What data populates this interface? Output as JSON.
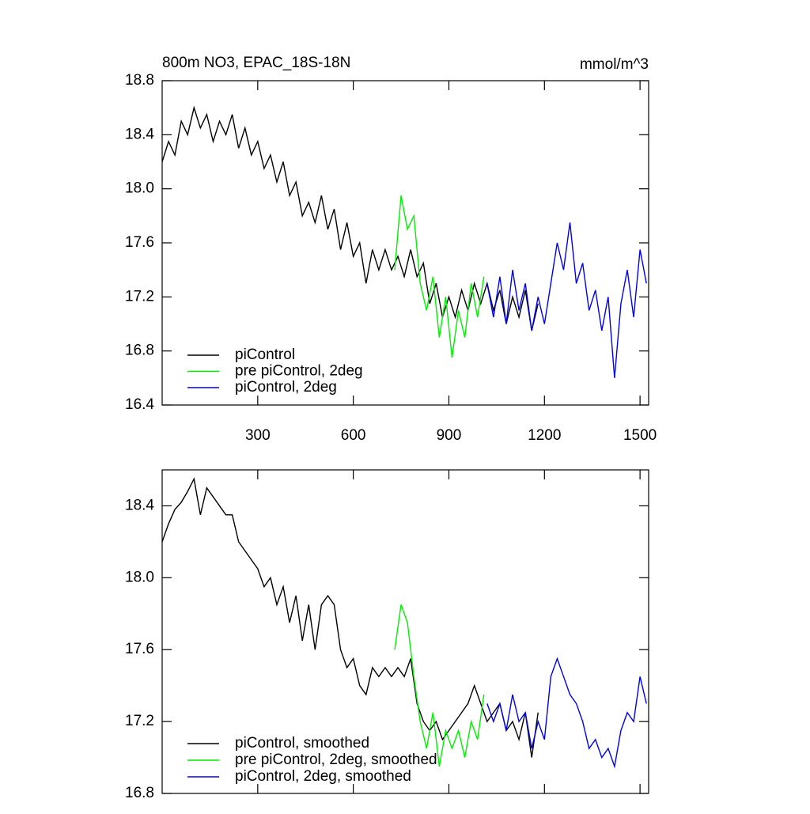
{
  "chart_data": [
    {
      "type": "line",
      "title": "800m NO3, EPAC_18S-18N",
      "units": "mmol/m^3",
      "xlim": [
        0,
        1527
      ],
      "xticks": [
        300,
        600,
        900,
        1200,
        1500
      ],
      "ylim": [
        16.4,
        18.8
      ],
      "yticks": [
        {
          "value": 16.4,
          "label": "16.4"
        },
        {
          "value": 16.8,
          "label": "16.8"
        },
        {
          "value": 17.2,
          "label": "17.2"
        },
        {
          "value": 17.6,
          "label": "17.6"
        },
        {
          "value": 18.0,
          "label": "18.0"
        },
        {
          "value": 18.4,
          "label": "18.4"
        },
        {
          "value": 18.8,
          "label": "18.8"
        }
      ],
      "series": [
        {
          "name": "piControl",
          "color": "#000000",
          "x": [
            0,
            20,
            40,
            60,
            80,
            100,
            120,
            140,
            160,
            180,
            200,
            220,
            240,
            260,
            280,
            300,
            320,
            340,
            360,
            380,
            400,
            420,
            440,
            460,
            480,
            500,
            520,
            540,
            560,
            580,
            600,
            620,
            640,
            660,
            680,
            700,
            720,
            740,
            760,
            780,
            800,
            820,
            840,
            860,
            880,
            900,
            920,
            940,
            960,
            980,
            1000,
            1020,
            1040,
            1060,
            1080,
            1100,
            1120,
            1140,
            1160,
            1180
          ],
          "values": [
            18.2,
            18.35,
            18.25,
            18.5,
            18.4,
            18.6,
            18.45,
            18.55,
            18.35,
            18.5,
            18.4,
            18.55,
            18.3,
            18.45,
            18.25,
            18.35,
            18.15,
            18.25,
            18.05,
            18.2,
            17.95,
            18.05,
            17.8,
            17.9,
            17.75,
            17.95,
            17.7,
            17.85,
            17.55,
            17.75,
            17.5,
            17.6,
            17.3,
            17.55,
            17.4,
            17.55,
            17.4,
            17.5,
            17.35,
            17.55,
            17.35,
            17.45,
            17.15,
            17.3,
            17.05,
            17.2,
            17.05,
            17.25,
            17.1,
            17.3,
            17.15,
            17.3,
            17.1,
            17.25,
            17.0,
            17.2,
            17.05,
            17.25,
            16.95,
            17.15
          ]
        },
        {
          "name": "pre piControl, 2deg",
          "color": "#00ee00",
          "x": [
            730,
            750,
            770,
            790,
            810,
            830,
            850,
            870,
            890,
            910,
            930,
            950,
            970,
            990,
            1010
          ],
          "values": [
            17.4,
            17.95,
            17.7,
            17.8,
            17.3,
            17.1,
            17.35,
            16.9,
            17.2,
            16.75,
            17.1,
            16.9,
            17.3,
            17.05,
            17.35
          ]
        },
        {
          "name": "piControl, 2deg",
          "color": "#0000ee",
          "x": [
            1020,
            1040,
            1060,
            1080,
            1100,
            1120,
            1140,
            1160,
            1180,
            1200,
            1220,
            1240,
            1260,
            1280,
            1300,
            1320,
            1340,
            1360,
            1380,
            1400,
            1420,
            1440,
            1460,
            1480,
            1500,
            1520
          ],
          "values": [
            17.3,
            17.05,
            17.35,
            17.0,
            17.4,
            17.1,
            17.3,
            16.95,
            17.2,
            17.0,
            17.3,
            17.6,
            17.4,
            17.75,
            17.3,
            17.45,
            17.1,
            17.25,
            16.95,
            17.2,
            16.6,
            17.15,
            17.4,
            17.05,
            17.55,
            17.3
          ]
        }
      ]
    },
    {
      "type": "line",
      "xlim": [
        0,
        1527
      ],
      "ylim": [
        16.8,
        18.6
      ],
      "yticks": [
        {
          "value": 16.8,
          "label": "16.8"
        },
        {
          "value": 17.2,
          "label": "17.2"
        },
        {
          "value": 17.6,
          "label": "17.6"
        },
        {
          "value": 18.0,
          "label": "18.0"
        },
        {
          "value": 18.4,
          "label": "18.4"
        }
      ],
      "series": [
        {
          "name": "piControl, smoothed",
          "color": "#000000",
          "x": [
            0,
            20,
            40,
            60,
            80,
            100,
            120,
            140,
            160,
            180,
            200,
            220,
            240,
            260,
            280,
            300,
            320,
            340,
            360,
            380,
            400,
            420,
            440,
            460,
            480,
            500,
            520,
            540,
            560,
            580,
            600,
            620,
            640,
            660,
            680,
            700,
            720,
            740,
            760,
            780,
            800,
            820,
            840,
            860,
            880,
            900,
            920,
            940,
            960,
            980,
            1000,
            1020,
            1040,
            1060,
            1080,
            1100,
            1120,
            1140,
            1160,
            1180
          ],
          "values": [
            18.2,
            18.3,
            18.38,
            18.42,
            18.48,
            18.55,
            18.35,
            18.5,
            18.45,
            18.4,
            18.35,
            18.35,
            18.2,
            18.15,
            18.1,
            18.05,
            17.95,
            18.0,
            17.85,
            17.95,
            17.75,
            17.9,
            17.65,
            17.85,
            17.6,
            17.85,
            17.9,
            17.85,
            17.6,
            17.5,
            17.55,
            17.4,
            17.35,
            17.5,
            17.45,
            17.5,
            17.45,
            17.5,
            17.45,
            17.55,
            17.3,
            17.2,
            17.15,
            17.2,
            17.1,
            17.15,
            17.2,
            17.25,
            17.3,
            17.4,
            17.3,
            17.2,
            17.25,
            17.3,
            17.15,
            17.2,
            17.1,
            17.25,
            17.0,
            17.25
          ]
        },
        {
          "name": "pre piControl, 2deg, smoothed",
          "color": "#00ee00",
          "x": [
            730,
            750,
            770,
            790,
            810,
            830,
            850,
            870,
            890,
            910,
            930,
            950,
            970,
            990,
            1010
          ],
          "values": [
            17.6,
            17.85,
            17.75,
            17.45,
            17.2,
            17.05,
            17.25,
            16.95,
            17.15,
            17.05,
            17.15,
            17.0,
            17.2,
            17.1,
            17.35
          ]
        },
        {
          "name": "piControl, 2deg, smoothed",
          "color": "#0000ee",
          "x": [
            1020,
            1040,
            1060,
            1080,
            1100,
            1120,
            1140,
            1160,
            1180,
            1200,
            1220,
            1240,
            1260,
            1280,
            1300,
            1320,
            1340,
            1360,
            1380,
            1400,
            1420,
            1440,
            1460,
            1480,
            1500,
            1520
          ],
          "values": [
            17.3,
            17.2,
            17.3,
            17.15,
            17.35,
            17.2,
            17.25,
            17.05,
            17.2,
            17.1,
            17.45,
            17.55,
            17.45,
            17.35,
            17.3,
            17.2,
            17.05,
            17.1,
            17.0,
            17.05,
            16.95,
            17.15,
            17.25,
            17.2,
            17.45,
            17.3
          ]
        }
      ]
    }
  ]
}
